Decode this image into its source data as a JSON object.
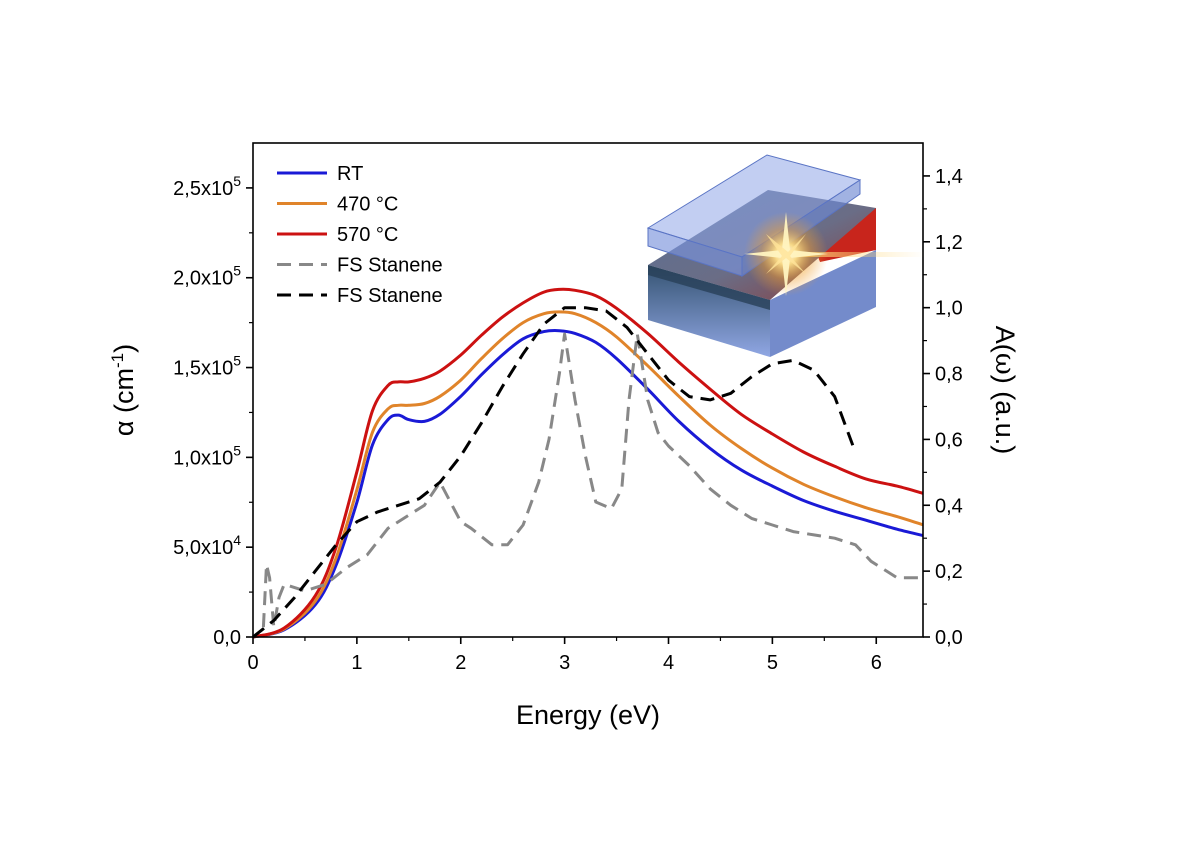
{
  "chart_data": {
    "type": "line",
    "xlabel": "Energy (eV)",
    "ylabel_left": {
      "symbol": "α",
      "unit_base": " (cm",
      "unit_sup": "-1",
      "unit_tail": ")"
    },
    "ylabel_right": {
      "prefix": "A(",
      "symbol": "ω",
      "suffix": ") (a.u.)"
    },
    "xlim": [
      0,
      6.45
    ],
    "ylim_left": [
      0,
      275000
    ],
    "ylim_right": [
      0,
      1.5
    ],
    "x_ticks": [
      {
        "value": 0,
        "label": "0"
      },
      {
        "value": 1,
        "label": "1"
      },
      {
        "value": 2,
        "label": "2"
      },
      {
        "value": 3,
        "label": "3"
      },
      {
        "value": 4,
        "label": "4"
      },
      {
        "value": 5,
        "label": "5"
      },
      {
        "value": 6,
        "label": "6"
      }
    ],
    "y_left_ticks": [
      {
        "value": 0,
        "mant": "0,0",
        "exp": ""
      },
      {
        "value": 50000,
        "mant": "5,0x10",
        "exp": "4"
      },
      {
        "value": 100000,
        "mant": "1,0x10",
        "exp": "5"
      },
      {
        "value": 150000,
        "mant": "1,5x10",
        "exp": "5"
      },
      {
        "value": 200000,
        "mant": "2,0x10",
        "exp": "5"
      },
      {
        "value": 250000,
        "mant": "2,5x10",
        "exp": "5"
      }
    ],
    "y_right_ticks": [
      {
        "value": 0,
        "label": "0,0"
      },
      {
        "value": 0.2,
        "label": "0,2"
      },
      {
        "value": 0.4,
        "label": "0,4"
      },
      {
        "value": 0.6,
        "label": "0,6"
      },
      {
        "value": 0.8,
        "label": "0,8"
      },
      {
        "value": 1.0,
        "label": "1,0"
      },
      {
        "value": 1.2,
        "label": "1,2"
      },
      {
        "value": 1.4,
        "label": "1,4"
      }
    ],
    "legend_position": "top-left",
    "series": [
      {
        "name": "RT",
        "axis": "left",
        "color": "#1a1ad6",
        "dash": "solid",
        "x": [
          0.0,
          0.3,
          0.6,
          0.8,
          1.0,
          1.15,
          1.3,
          1.4,
          1.5,
          1.65,
          1.8,
          2.0,
          2.2,
          2.4,
          2.6,
          2.8,
          2.95,
          3.1,
          3.3,
          3.5,
          3.8,
          4.1,
          4.4,
          4.7,
          5.0,
          5.3,
          5.6,
          5.9,
          6.2,
          6.45
        ],
        "y": [
          0,
          4000,
          18000,
          40000,
          75000,
          107000,
          121000,
          123500,
          121000,
          120000,
          124000,
          134000,
          146000,
          157000,
          166000,
          170000,
          170500,
          169000,
          164000,
          155000,
          138000,
          120000,
          105000,
          93000,
          84000,
          76000,
          70000,
          65000,
          60000,
          56500
        ]
      },
      {
        "name": "470 °C",
        "axis": "left",
        "color": "#e0842a",
        "dash": "solid",
        "x": [
          0.0,
          0.3,
          0.6,
          0.8,
          1.0,
          1.15,
          1.3,
          1.4,
          1.5,
          1.65,
          1.8,
          2.0,
          2.2,
          2.4,
          2.6,
          2.8,
          2.95,
          3.1,
          3.3,
          3.5,
          3.8,
          4.1,
          4.4,
          4.7,
          5.0,
          5.3,
          5.6,
          5.9,
          6.2,
          6.45
        ],
        "y": [
          0,
          4500,
          20000,
          44000,
          82000,
          114000,
          127000,
          129000,
          129000,
          130000,
          134000,
          143000,
          155000,
          166000,
          175000,
          180000,
          181000,
          180000,
          175000,
          167000,
          151000,
          134000,
          118000,
          105000,
          94000,
          85000,
          78000,
          72000,
          67000,
          62500
        ]
      },
      {
        "name": "570 °C",
        "axis": "left",
        "color": "#cc1111",
        "dash": "solid",
        "x": [
          0.0,
          0.3,
          0.6,
          0.8,
          1.0,
          1.15,
          1.3,
          1.4,
          1.5,
          1.65,
          1.8,
          2.0,
          2.2,
          2.4,
          2.6,
          2.8,
          2.95,
          3.1,
          3.3,
          3.5,
          3.8,
          4.1,
          4.4,
          4.7,
          5.0,
          5.3,
          5.6,
          5.9,
          6.2,
          6.45
        ],
        "y": [
          0,
          5000,
          23000,
          50000,
          92000,
          126000,
          140000,
          142000,
          142000,
          144000,
          148000,
          157000,
          168000,
          178000,
          186000,
          192000,
          193500,
          193000,
          190000,
          183000,
          169000,
          153000,
          138000,
          124000,
          113000,
          103000,
          95000,
          88000,
          84000,
          80000
        ]
      },
      {
        "name": "FS Stanene",
        "axis": "right",
        "color": "#888888",
        "dash": "dashed",
        "x": [
          0.1,
          0.13,
          0.16,
          0.2,
          0.25,
          0.3,
          0.4,
          0.5,
          0.7,
          0.9,
          1.1,
          1.3,
          1.5,
          1.65,
          1.8,
          1.9,
          2.0,
          2.1,
          2.3,
          2.45,
          2.6,
          2.75,
          2.85,
          2.95,
          3.0,
          3.1,
          3.2,
          3.3,
          3.45,
          3.55,
          3.62,
          3.7,
          3.8,
          3.9,
          4.0,
          4.2,
          4.4,
          4.6,
          4.8,
          5.0,
          5.2,
          5.4,
          5.6,
          5.8,
          5.95,
          6.2,
          6.45
        ],
        "y": [
          0.03,
          0.22,
          0.18,
          0.03,
          0.12,
          0.16,
          0.15,
          0.14,
          0.16,
          0.21,
          0.25,
          0.33,
          0.37,
          0.4,
          0.47,
          0.41,
          0.35,
          0.33,
          0.28,
          0.28,
          0.34,
          0.47,
          0.6,
          0.8,
          0.92,
          0.72,
          0.55,
          0.41,
          0.39,
          0.45,
          0.72,
          0.92,
          0.72,
          0.62,
          0.58,
          0.52,
          0.45,
          0.4,
          0.36,
          0.34,
          0.32,
          0.31,
          0.3,
          0.28,
          0.23,
          0.18,
          0.18
        ]
      },
      {
        "name": "FS Stanene",
        "axis": "right",
        "color": "#000000",
        "dash": "dashed",
        "x": [
          0.0,
          0.2,
          0.4,
          0.6,
          0.8,
          1.0,
          1.2,
          1.4,
          1.6,
          1.8,
          2.0,
          2.2,
          2.4,
          2.6,
          2.8,
          3.0,
          3.2,
          3.4,
          3.6,
          3.8,
          4.0,
          4.2,
          4.4,
          4.6,
          4.8,
          5.0,
          5.2,
          5.4,
          5.6,
          5.8
        ],
        "y": [
          0.0,
          0.05,
          0.12,
          0.2,
          0.28,
          0.35,
          0.38,
          0.4,
          0.42,
          0.47,
          0.55,
          0.65,
          0.76,
          0.86,
          0.95,
          1.0,
          1.0,
          0.99,
          0.94,
          0.86,
          0.78,
          0.73,
          0.72,
          0.74,
          0.79,
          0.83,
          0.84,
          0.81,
          0.73,
          0.56
        ]
      }
    ]
  }
}
